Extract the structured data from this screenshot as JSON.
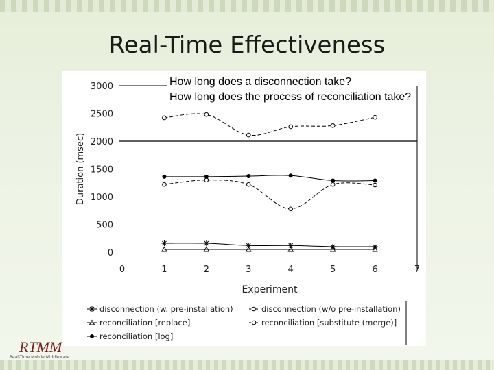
{
  "title": "Real-Time Effectiveness",
  "questions": [
    "How long does a disconnection take?",
    "How long does the process of reconciliation take?"
  ],
  "logo": {
    "text": "RTMM",
    "subtitle": "Real-Time Mobile Middleware"
  },
  "chart_data": {
    "type": "line",
    "xlabel": "Experiment",
    "ylabel": "Duration (msec)",
    "xlim": [
      0,
      7
    ],
    "ylim": [
      0,
      3000
    ],
    "xticks": [
      0,
      1,
      2,
      3,
      4,
      5,
      6,
      7
    ],
    "yticks": [
      0,
      500,
      1000,
      1500,
      2000,
      2500,
      3000
    ],
    "grid": false,
    "legend_position": "bottom",
    "series": [
      {
        "name": "disconnection (w. pre-installation)",
        "marker": "asterisk",
        "line": "solid",
        "x": [
          1,
          2,
          3,
          4,
          5,
          6
        ],
        "y": [
          160,
          160,
          120,
          120,
          100,
          100
        ]
      },
      {
        "name": "disconnection (w/o pre-installation)",
        "marker": "circle-open",
        "line": "dashed",
        "x": [
          1,
          2,
          3,
          4,
          5,
          6
        ],
        "y": [
          2420,
          2480,
          2110,
          2260,
          2280,
          2430
        ]
      },
      {
        "name": "reconciliation [replace]",
        "marker": "triangle",
        "line": "solid",
        "x": [
          1,
          2,
          3,
          4,
          5,
          6
        ],
        "y": [
          50,
          50,
          50,
          50,
          50,
          50
        ]
      },
      {
        "name": "reconciliation [substitute (merge)]",
        "marker": "circle-open",
        "line": "dashed",
        "x": [
          1,
          2,
          3,
          4,
          5,
          6
        ],
        "y": [
          1220,
          1300,
          1220,
          780,
          1220,
          1210
        ]
      },
      {
        "name": "reconciliation [log]",
        "marker": "circle-filled",
        "line": "solid",
        "x": [
          1,
          2,
          3,
          4,
          5,
          6
        ],
        "y": [
          1360,
          1360,
          1370,
          1380,
          1290,
          1290
        ]
      }
    ]
  }
}
